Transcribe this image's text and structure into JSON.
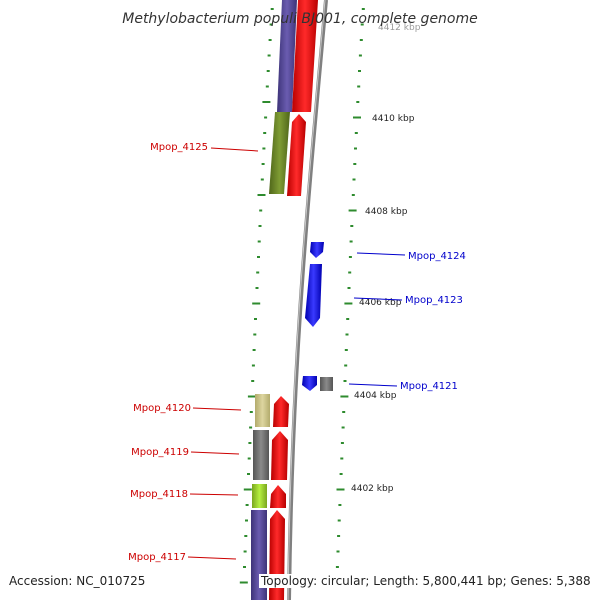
{
  "title": "Methylobacterium populi BJ001, complete genome",
  "top_faded_tick": "4412 kbp",
  "kbp_ticks": [
    "4410 kbp",
    "4408 kbp",
    "4406 kbp",
    "4404 kbp",
    "4402 kbp"
  ],
  "labels_left": [
    "Mpop_4125",
    "Mpop_4120",
    "Mpop_4119",
    "Mpop_4118",
    "Mpop_4117"
  ],
  "labels_right": [
    "Mpop_4124",
    "Mpop_4123",
    "Mpop_4121"
  ],
  "accession": "Accession: NC_010725",
  "topology": "Topology: circular; Length: 5,800,441 bp; Genes: 5,388",
  "colors": {
    "left_label": "#cc0000",
    "right_label": "#0000cc",
    "forward_gene": "#ff0000",
    "reverse_gene": "#0000ff",
    "cog_purple": "#5a4a9e",
    "cog_olive": "#6f8a2a",
    "cog_khaki": "#cfc88a",
    "cog_grey": "#777777",
    "cog_lime": "#9acd32",
    "backbone": "#888888",
    "gc_marks": "#2e8b2e"
  }
}
